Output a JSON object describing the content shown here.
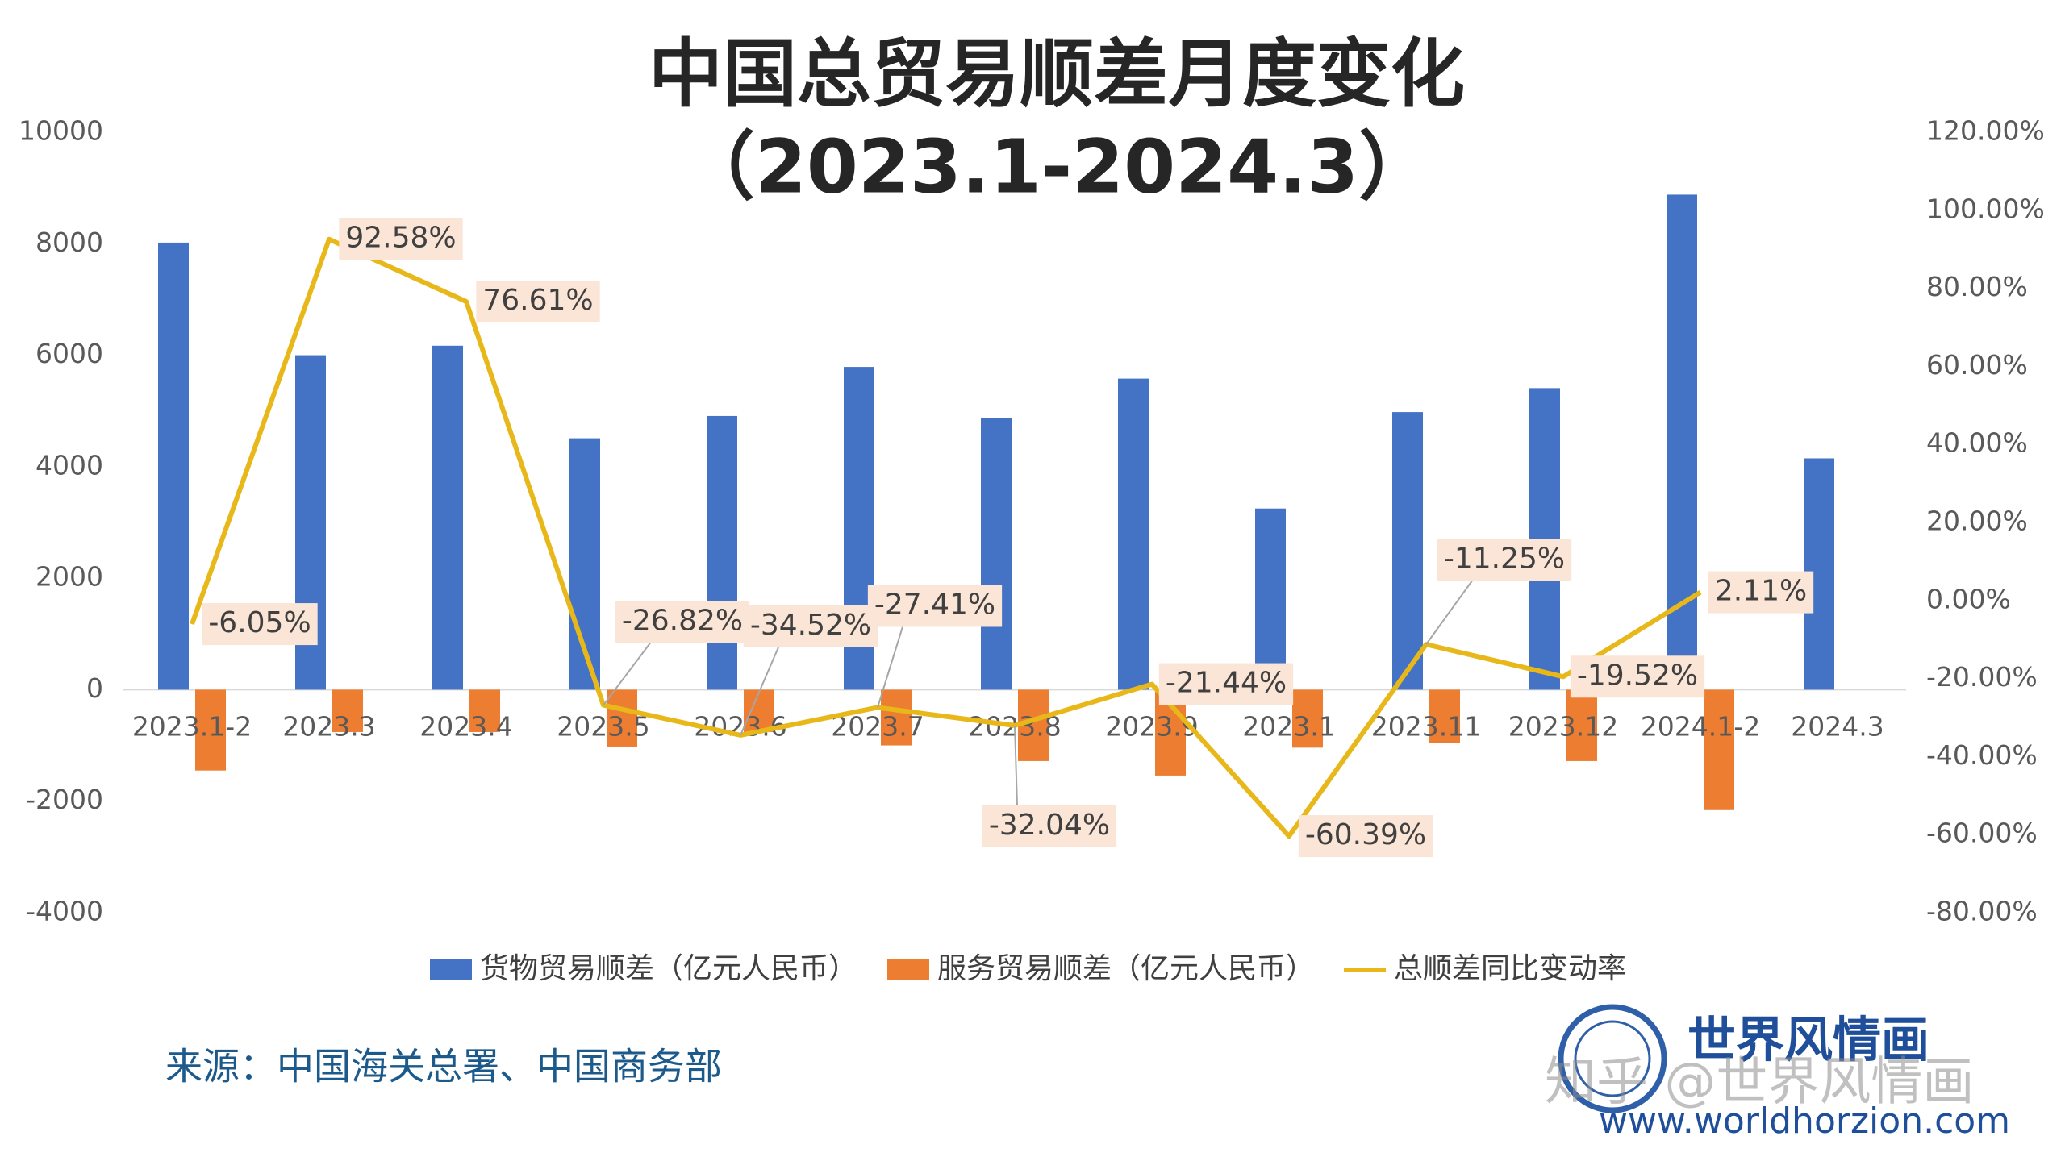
{
  "chart_data": {
    "type": "bar",
    "title": "中国总贸易顺差月度变化",
    "subtitle": "（2023.1-2024.3）",
    "categories": [
      "2023.1-2",
      "2023.3",
      "2023.4",
      "2023.5",
      "2023.6",
      "2023.7",
      "2023.8",
      "2023.9",
      "2023.1",
      "2023.11",
      "2023.12",
      "2024.1-2",
      "2024.3"
    ],
    "series": [
      {
        "name": "货物贸易顺差（亿元人民币）",
        "type": "bar",
        "color": "#4472c4",
        "values": [
          8020,
          6000,
          6170,
          4510,
          4910,
          5790,
          4870,
          5580,
          3250,
          4980,
          5410,
          8880,
          4150
        ]
      },
      {
        "name": "服务贸易顺差（亿元人民币）",
        "type": "bar",
        "color": "#ed7d31",
        "values": [
          -1450,
          -760,
          -760,
          -1020,
          -760,
          -1000,
          -1280,
          -1540,
          -1040,
          -950,
          -1280,
          -2160,
          null
        ]
      },
      {
        "name": "总顺差同比变动率",
        "type": "line",
        "axis": "y2",
        "color": "#e8b81a",
        "values": [
          -6.05,
          92.58,
          76.61,
          -26.82,
          -34.52,
          -27.41,
          -32.04,
          -21.44,
          -60.39,
          -11.25,
          -19.52,
          2.11,
          null
        ],
        "value_labels": [
          "-6.05%",
          "92.58%",
          "76.61%",
          "-26.82%",
          "-34.52%",
          "-27.41%",
          "-32.04%",
          "-21.44%",
          "-60.39%",
          "-11.25%",
          "-19.52%",
          "2.11%",
          null
        ]
      }
    ],
    "ylim": [
      -4000,
      10000
    ],
    "yticks": [
      -4000,
      -2000,
      0,
      2000,
      4000,
      6000,
      8000,
      10000
    ],
    "y2lim": [
      -80,
      120
    ],
    "y2ticks": [
      {
        "value": -80,
        "label": "-80.00%"
      },
      {
        "value": -60,
        "label": "-60.00%"
      },
      {
        "value": -40,
        "label": "-40.00%"
      },
      {
        "value": -20,
        "label": "-20.00%"
      },
      {
        "value": 0,
        "label": "0.00%"
      },
      {
        "value": 20,
        "label": "20.00%"
      },
      {
        "value": 40,
        "label": "40.00%"
      },
      {
        "value": 60,
        "label": "60.00%"
      },
      {
        "value": 80,
        "label": "80.00%"
      },
      {
        "value": 100,
        "label": "100.00%"
      },
      {
        "value": 120,
        "label": "120.00%"
      }
    ],
    "grid": false,
    "legend": "bottom"
  },
  "source": "来源：中国海关总署、中国商务部",
  "logo_text": "世界风情画",
  "watermark": "知乎 @世界风情画",
  "website": "www.worldhorzion.com"
}
